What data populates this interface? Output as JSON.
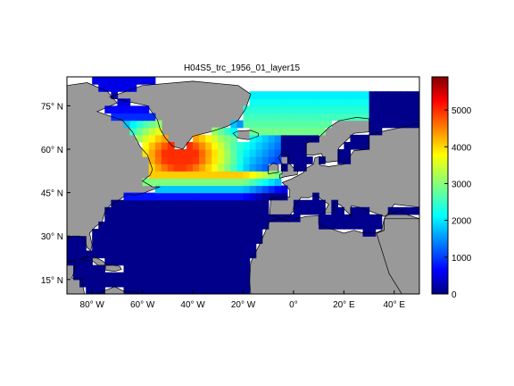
{
  "chart_data": {
    "type": "heatmap",
    "title": "H04S5_trc_1956_01_layer15",
    "xlabel": "",
    "ylabel": "",
    "lon_range": [
      -90,
      50
    ],
    "lat_range": [
      10,
      85
    ],
    "lon_ticks": [
      {
        "value": -80,
        "label": "80° W"
      },
      {
        "value": -60,
        "label": "60° W"
      },
      {
        "value": -40,
        "label": "40° W"
      },
      {
        "value": -20,
        "label": "20° W"
      },
      {
        "value": 0,
        "label": "0°"
      },
      {
        "value": 20,
        "label": "20° E"
      },
      {
        "value": 40,
        "label": "40° E"
      }
    ],
    "lat_ticks": [
      {
        "value": 15,
        "label": "15° N"
      },
      {
        "value": 30,
        "label": "30° N"
      },
      {
        "value": 45,
        "label": "45° N"
      },
      {
        "value": 60,
        "label": "60° N"
      },
      {
        "value": 75,
        "label": "75° N"
      }
    ],
    "colorbar": {
      "colormap": "jet",
      "range": [
        0,
        5900
      ],
      "ticks": [
        0,
        1000,
        2000,
        3000,
        4000,
        5000
      ]
    },
    "colors": {
      "land": "#999999",
      "nodata": "#ffffff",
      "coastline": "#000000"
    }
  }
}
